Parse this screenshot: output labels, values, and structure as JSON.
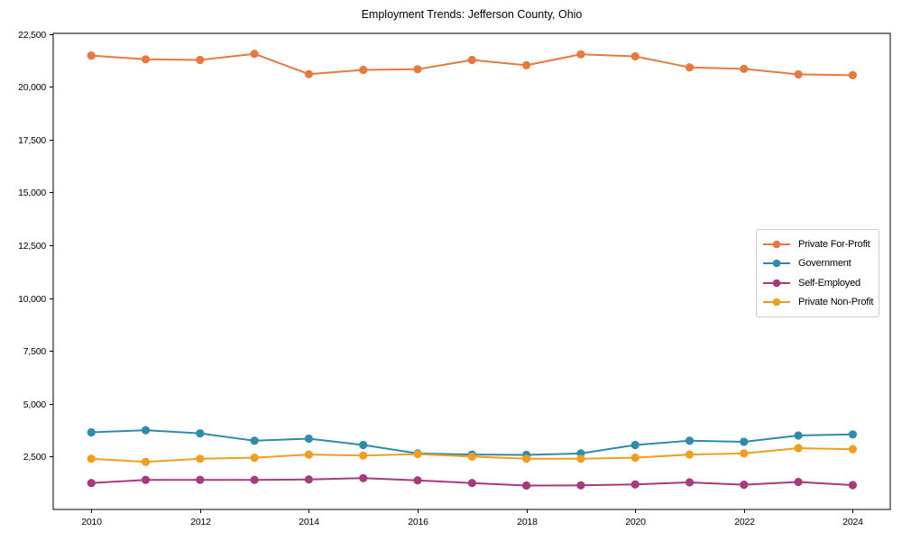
{
  "window": {
    "background": "#ffffff"
  },
  "chart_data": {
    "type": "line",
    "title": "Employment Trends: Jefferson County, Ohio",
    "xlabel": "",
    "ylabel": "",
    "x": [
      2010,
      2011,
      2012,
      2013,
      2014,
      2015,
      2016,
      2017,
      2018,
      2019,
      2020,
      2021,
      2022,
      2023,
      2024
    ],
    "x_ticks": [
      2010,
      2012,
      2014,
      2016,
      2018,
      2020,
      2022,
      2024
    ],
    "x_tick_labels": [
      "2010",
      "2012",
      "2014",
      "2016",
      "2018",
      "2020",
      "2022",
      "2024"
    ],
    "y_ticks": [
      2500,
      5000,
      7500,
      10000,
      12500,
      15000,
      17500,
      20000,
      22500
    ],
    "y_tick_labels": [
      "2,500",
      "5,000",
      "7,500",
      "10,000",
      "12,500",
      "15,000",
      "17,500",
      "20,000",
      "22,500"
    ],
    "xlim": [
      2009.3,
      2024.69
    ],
    "ylim": [
      0,
      22530
    ],
    "grid": false,
    "legend_position": "center-right",
    "series": [
      {
        "name": "Private For-Profit",
        "color": "#E8793E",
        "values": [
          21480,
          21300,
          21270,
          21560,
          20600,
          20800,
          20830,
          21270,
          21020,
          21540,
          21440,
          20920,
          20850,
          20590,
          20550
        ]
      },
      {
        "name": "Government",
        "color": "#2E8BAB",
        "values": [
          3650,
          3750,
          3600,
          3250,
          3350,
          3050,
          2650,
          2600,
          2580,
          2650,
          3050,
          3250,
          3200,
          3500,
          3550
        ]
      },
      {
        "name": "Self-Employed",
        "color": "#A63A7B",
        "values": [
          1250,
          1400,
          1400,
          1400,
          1420,
          1480,
          1380,
          1250,
          1130,
          1140,
          1180,
          1280,
          1170,
          1300,
          1150
        ]
      },
      {
        "name": "Private Non-Profit",
        "color": "#F09E1F",
        "values": [
          2400,
          2250,
          2400,
          2450,
          2600,
          2550,
          2620,
          2500,
          2400,
          2400,
          2450,
          2600,
          2650,
          2900,
          2850
        ]
      }
    ]
  }
}
